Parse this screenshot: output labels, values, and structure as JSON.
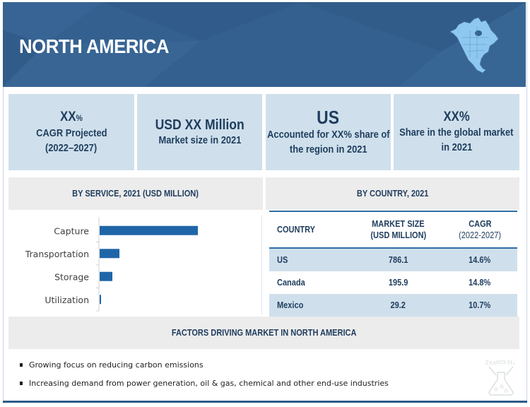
{
  "banner": {
    "title": "NORTH AMERICA",
    "icons": [
      "north-america-map-icon"
    ]
  },
  "stats": [
    {
      "big": "XX",
      "big_suffix": "%",
      "lines": [
        "CAGR Projected",
        "(2022–2027)"
      ]
    },
    {
      "big": "USD XX Million",
      "lines": [
        "Market size in 2021"
      ]
    },
    {
      "big": "US",
      "lines": [
        "Accounted for XX% share of",
        "the region in 2021"
      ]
    },
    {
      "big": "XX%",
      "lines": [
        "Share in the global market",
        "in 2021"
      ]
    }
  ],
  "service_section": {
    "title": "BY SERVICE, 2021 (USD MILLION)"
  },
  "country_section": {
    "title": "BY COUNTRY, 2021",
    "columns": [
      "COUNTRY",
      "MARKET SIZE",
      "(USD MILLION)",
      "CAGR",
      "(2022-2027)"
    ],
    "rows": [
      {
        "country": "US",
        "market_size": "786.1",
        "cagr": "14.6%"
      },
      {
        "country": "Canada",
        "market_size": "195.9",
        "cagr": "14.8%"
      },
      {
        "country": "Mexico",
        "market_size": "29.2",
        "cagr": "10.7%"
      }
    ]
  },
  "factors": {
    "title": "FACTORS DRIVING MARKET IN NORTH AMERICA",
    "items": [
      "Growing focus on reducing carbon emissions",
      "Increasing demand from power generation, oil & gas, chemical and other end-use industries"
    ],
    "icons": [
      "flask-icon"
    ]
  },
  "colors": {
    "banner": "#34608f",
    "stat_box": "#cfe0ec",
    "heading_text": "#1f3d5e",
    "section_head_bg": "#ececec",
    "bar": "#1f66a8",
    "rule": "#2e6da4"
  },
  "chart_data": {
    "type": "bar",
    "orientation": "horizontal",
    "title": "BY SERVICE, 2021 (USD MILLION)",
    "categories": [
      "Capture",
      "Transportation",
      "Storage",
      "Utilization"
    ],
    "values": [
      139,
      28,
      18,
      2
    ],
    "value_note": "relative bar lengths; no axis ticks or data labels shown",
    "xlabel": "",
    "ylabel": "",
    "xlim": [
      0,
      139
    ],
    "grid": false,
    "legend": "none"
  }
}
